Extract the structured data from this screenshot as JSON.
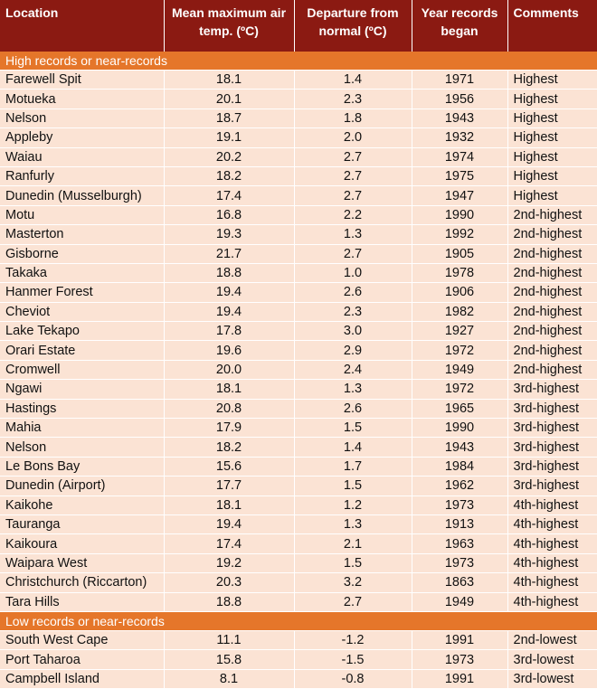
{
  "headers": {
    "location": "Location",
    "mean_max": "Mean maximum air temp. (ºC)",
    "departure": "Departure from normal (ºC)",
    "year": "Year records began",
    "comments": "Comments"
  },
  "sections": [
    {
      "title": "High records or near-records",
      "rows": [
        {
          "location": "Farewell Spit",
          "temp": "18.1",
          "departure": "1.4",
          "year": "1971",
          "comment": "Highest"
        },
        {
          "location": "Motueka",
          "temp": "20.1",
          "departure": "2.3",
          "year": "1956",
          "comment": "Highest"
        },
        {
          "location": "Nelson",
          "temp": "18.7",
          "departure": "1.8",
          "year": "1943",
          "comment": "Highest"
        },
        {
          "location": "Appleby",
          "temp": "19.1",
          "departure": "2.0",
          "year": "1932",
          "comment": "Highest"
        },
        {
          "location": "Waiau",
          "temp": "20.2",
          "departure": "2.7",
          "year": "1974",
          "comment": "Highest"
        },
        {
          "location": "Ranfurly",
          "temp": "18.2",
          "departure": "2.7",
          "year": "1975",
          "comment": "Highest"
        },
        {
          "location": "Dunedin (Musselburgh)",
          "temp": "17.4",
          "departure": "2.7",
          "year": "1947",
          "comment": "Highest"
        },
        {
          "location": "Motu",
          "temp": "16.8",
          "departure": "2.2",
          "year": "1990",
          "comment": "2nd-highest"
        },
        {
          "location": "Masterton",
          "temp": "19.3",
          "departure": "1.3",
          "year": "1992",
          "comment": "2nd-highest"
        },
        {
          "location": "Gisborne",
          "temp": "21.7",
          "departure": "2.7",
          "year": "1905",
          "comment": "2nd-highest"
        },
        {
          "location": "Takaka",
          "temp": "18.8",
          "departure": "1.0",
          "year": "1978",
          "comment": "2nd-highest"
        },
        {
          "location": "Hanmer Forest",
          "temp": "19.4",
          "departure": "2.6",
          "year": "1906",
          "comment": "2nd-highest"
        },
        {
          "location": "Cheviot",
          "temp": "19.4",
          "departure": "2.3",
          "year": "1982",
          "comment": "2nd-highest"
        },
        {
          "location": "Lake Tekapo",
          "temp": "17.8",
          "departure": "3.0",
          "year": "1927",
          "comment": "2nd-highest"
        },
        {
          "location": "Orari Estate",
          "temp": "19.6",
          "departure": "2.9",
          "year": "1972",
          "comment": "2nd-highest"
        },
        {
          "location": "Cromwell",
          "temp": "20.0",
          "departure": "2.4",
          "year": "1949",
          "comment": "2nd-highest"
        },
        {
          "location": "Ngawi",
          "temp": "18.1",
          "departure": "1.3",
          "year": "1972",
          "comment": "3rd-highest"
        },
        {
          "location": "Hastings",
          "temp": "20.8",
          "departure": "2.6",
          "year": "1965",
          "comment": "3rd-highest"
        },
        {
          "location": "Mahia",
          "temp": "17.9",
          "departure": "1.5",
          "year": "1990",
          "comment": "3rd-highest"
        },
        {
          "location": "Nelson",
          "temp": "18.2",
          "departure": "1.4",
          "year": "1943",
          "comment": "3rd-highest"
        },
        {
          "location": "Le Bons Bay",
          "temp": "15.6",
          "departure": "1.7",
          "year": "1984",
          "comment": "3rd-highest"
        },
        {
          "location": "Dunedin (Airport)",
          "temp": "17.7",
          "departure": "1.5",
          "year": "1962",
          "comment": "3rd-highest"
        },
        {
          "location": "Kaikohe",
          "temp": "18.1",
          "departure": "1.2",
          "year": "1973",
          "comment": "4th-highest"
        },
        {
          "location": "Tauranga",
          "temp": "19.4",
          "departure": "1.3",
          "year": "1913",
          "comment": "4th-highest"
        },
        {
          "location": "Kaikoura",
          "temp": "17.4",
          "departure": "2.1",
          "year": "1963",
          "comment": "4th-highest"
        },
        {
          "location": "Waipara West",
          "temp": "19.2",
          "departure": "1.5",
          "year": "1973",
          "comment": "4th-highest"
        },
        {
          "location": "Christchurch (Riccarton)",
          "temp": "20.3",
          "departure": "3.2",
          "year": "1863",
          "comment": "4th-highest"
        },
        {
          "location": "Tara Hills",
          "temp": "18.8",
          "departure": "2.7",
          "year": "1949",
          "comment": "4th-highest"
        }
      ]
    },
    {
      "title": "Low records or near-records",
      "rows": [
        {
          "location": "South West Cape",
          "temp": "11.1",
          "departure": "-1.2",
          "year": "1991",
          "comment": "2nd-lowest"
        },
        {
          "location": "Port Taharoa",
          "temp": "15.8",
          "departure": "-1.5",
          "year": "1973",
          "comment": "3rd-lowest"
        },
        {
          "location": "Campbell Island",
          "temp": "8.1",
          "departure": "-0.8",
          "year": "1991",
          "comment": "3rd-lowest"
        }
      ]
    }
  ]
}
